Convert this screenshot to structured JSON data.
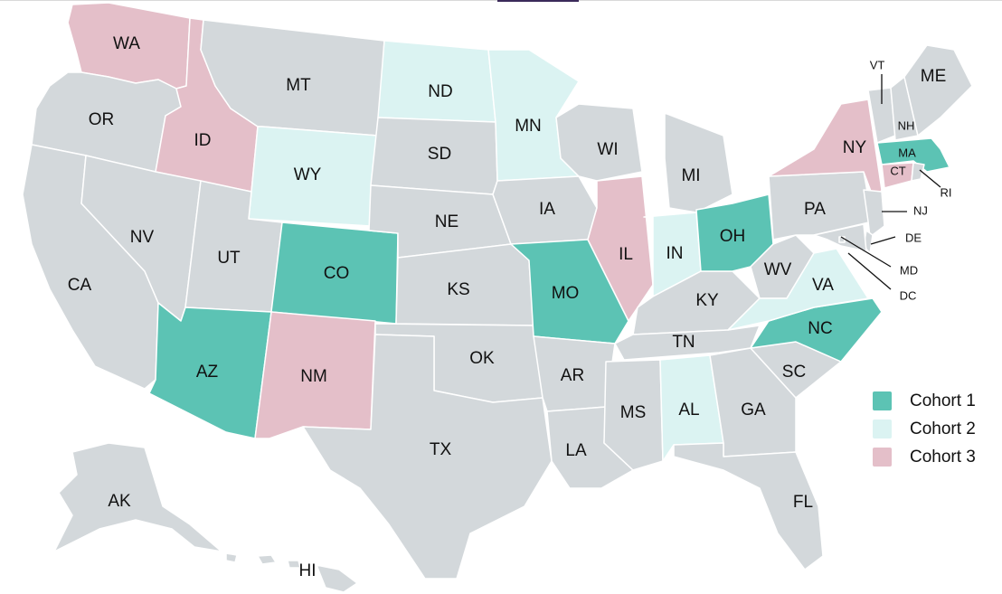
{
  "colors": {
    "cohort1": "#5cc3b4",
    "cohort2": "#dbf3f2",
    "cohort3": "#e4bfc9",
    "none": "#d3d8db"
  },
  "legend": [
    {
      "label": "Cohort 1",
      "key": "cohort1"
    },
    {
      "label": "Cohort 2",
      "key": "cohort2"
    },
    {
      "label": "Cohort 3",
      "key": "cohort3"
    }
  ],
  "states": [
    {
      "code": "WA",
      "cohort": "cohort3"
    },
    {
      "code": "OR",
      "cohort": "none"
    },
    {
      "code": "CA",
      "cohort": "none"
    },
    {
      "code": "ID",
      "cohort": "cohort3"
    },
    {
      "code": "NV",
      "cohort": "none"
    },
    {
      "code": "MT",
      "cohort": "none"
    },
    {
      "code": "WY",
      "cohort": "cohort2"
    },
    {
      "code": "UT",
      "cohort": "none"
    },
    {
      "code": "AZ",
      "cohort": "cohort1"
    },
    {
      "code": "CO",
      "cohort": "cohort1"
    },
    {
      "code": "NM",
      "cohort": "cohort3"
    },
    {
      "code": "ND",
      "cohort": "cohort2"
    },
    {
      "code": "SD",
      "cohort": "none"
    },
    {
      "code": "NE",
      "cohort": "none"
    },
    {
      "code": "KS",
      "cohort": "none"
    },
    {
      "code": "OK",
      "cohort": "none"
    },
    {
      "code": "TX",
      "cohort": "none"
    },
    {
      "code": "MN",
      "cohort": "cohort2"
    },
    {
      "code": "IA",
      "cohort": "none"
    },
    {
      "code": "MO",
      "cohort": "cohort1"
    },
    {
      "code": "AR",
      "cohort": "none"
    },
    {
      "code": "LA",
      "cohort": "none"
    },
    {
      "code": "WI",
      "cohort": "none"
    },
    {
      "code": "IL",
      "cohort": "cohort3"
    },
    {
      "code": "MS",
      "cohort": "none"
    },
    {
      "code": "MI",
      "cohort": "none"
    },
    {
      "code": "IN",
      "cohort": "cohort2"
    },
    {
      "code": "KY",
      "cohort": "none"
    },
    {
      "code": "TN",
      "cohort": "none"
    },
    {
      "code": "AL",
      "cohort": "cohort2"
    },
    {
      "code": "OH",
      "cohort": "cohort1"
    },
    {
      "code": "WV",
      "cohort": "none"
    },
    {
      "code": "GA",
      "cohort": "none"
    },
    {
      "code": "FL",
      "cohort": "none"
    },
    {
      "code": "SC",
      "cohort": "none"
    },
    {
      "code": "NC",
      "cohort": "cohort1"
    },
    {
      "code": "VA",
      "cohort": "cohort2"
    },
    {
      "code": "PA",
      "cohort": "none"
    },
    {
      "code": "NY",
      "cohort": "cohort3"
    },
    {
      "code": "VT",
      "cohort": "none"
    },
    {
      "code": "NH",
      "cohort": "none"
    },
    {
      "code": "ME",
      "cohort": "none"
    },
    {
      "code": "MA",
      "cohort": "cohort1"
    },
    {
      "code": "CT",
      "cohort": "cohort3"
    },
    {
      "code": "RI",
      "cohort": "none"
    },
    {
      "code": "NJ",
      "cohort": "none"
    },
    {
      "code": "DE",
      "cohort": "none"
    },
    {
      "code": "MD",
      "cohort": "none"
    },
    {
      "code": "DC",
      "cohort": "none"
    },
    {
      "code": "AK",
      "cohort": "none"
    },
    {
      "code": "HI",
      "cohort": "none"
    }
  ]
}
